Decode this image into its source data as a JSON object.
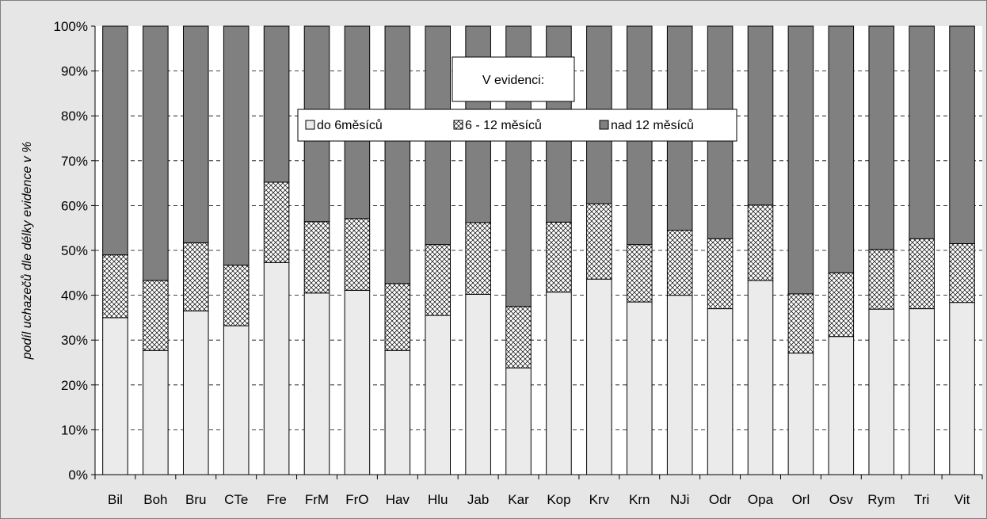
{
  "chart_data": {
    "type": "bar",
    "stacked": true,
    "percent_stacked": true,
    "categories": [
      "Bil",
      "Boh",
      "Bru",
      "CTe",
      "Fre",
      "FrM",
      "FrO",
      "Hav",
      "Hlu",
      "Jab",
      "Kar",
      "Kop",
      "Krv",
      "Krn",
      "NJi",
      "Odr",
      "Opa",
      "Orl",
      "Osv",
      "Rym",
      "Tri",
      "Vit"
    ],
    "series": [
      {
        "name": "do 6měsíců",
        "color": "#ebebeb",
        "pattern": "none",
        "values": [
          35.0,
          27.7,
          36.5,
          33.2,
          47.3,
          40.5,
          41.1,
          27.7,
          35.5,
          40.2,
          23.8,
          40.7,
          43.6,
          38.5,
          40.0,
          37.0,
          43.3,
          27.1,
          30.8,
          36.9,
          37.0,
          38.4
        ]
      },
      {
        "name": "6 - 12 měsíců",
        "color": "#ffffff",
        "pattern": "crosshatch",
        "values": [
          14.0,
          15.6,
          15.2,
          13.5,
          17.9,
          15.9,
          16.0,
          14.9,
          15.8,
          16.0,
          13.7,
          15.6,
          16.8,
          12.8,
          14.5,
          15.6,
          16.8,
          13.2,
          14.2,
          13.3,
          15.6,
          13.1
        ]
      },
      {
        "name": "nad 12 měsíců",
        "color": "#808080",
        "pattern": "none",
        "values": [
          51.0,
          56.7,
          48.3,
          53.3,
          34.8,
          43.6,
          42.9,
          57.4,
          48.7,
          43.8,
          62.5,
          43.7,
          39.6,
          48.7,
          45.5,
          47.4,
          39.9,
          59.7,
          55.0,
          49.8,
          47.4,
          48.5
        ]
      }
    ],
    "ylabel": "podíl uchazečů dle délky evidence v %",
    "xlabel": "",
    "ylim": [
      0,
      100
    ],
    "yticks": [
      "0%",
      "10%",
      "20%",
      "30%",
      "40%",
      "50%",
      "60%",
      "70%",
      "80%",
      "90%",
      "100%"
    ],
    "grid": "horizontal dashed",
    "legend": {
      "title": "V evidenci:",
      "placement": "top-center",
      "entries": [
        "do 6měsíců",
        "6 - 12 měsíců",
        "nad 12 měsíců"
      ]
    }
  }
}
